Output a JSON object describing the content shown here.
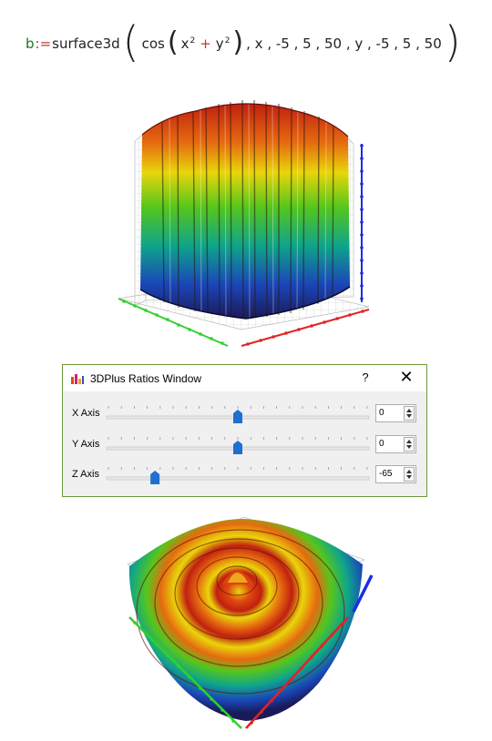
{
  "formula": {
    "variable": "b",
    "assign": ":=",
    "function": "surface3d",
    "inner_function": "cos",
    "term1": "x",
    "term2": "y",
    "exponent": "2",
    "plus": "+",
    "args": ", x , -5 , 5 , 50 , y , -5 , 5 , 50"
  },
  "plot_top": {
    "name": "surface-plot-side-view"
  },
  "dialog": {
    "title": "3DPlus Ratios Window",
    "help_label": "?",
    "close_label": "✕",
    "rows": [
      {
        "label": "X Axis",
        "value": "0",
        "slider_fraction": 0.5
      },
      {
        "label": "Y Axis",
        "value": "0",
        "slider_fraction": 0.5
      },
      {
        "label": "Z Axis",
        "value": "-65",
        "slider_fraction": 0.18
      }
    ]
  },
  "colors": {
    "x_axis": "#2fd12f",
    "y_axis": "#e32222",
    "z_axis": "#1a2fe0",
    "slider_thumb": "#1e6fd0",
    "dialog_border": "#6a9a3a"
  }
}
